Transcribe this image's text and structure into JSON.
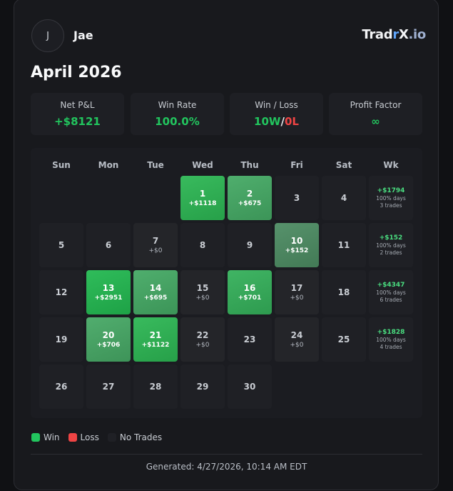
{
  "header": {
    "avatar": "J",
    "name": "Jae",
    "logo": [
      {
        "text": "Trad",
        "color": "#f3f4f6"
      },
      {
        "text": "r",
        "color": "#60a5fa"
      },
      {
        "text": "X",
        "color": "#f3f4f6"
      },
      {
        "text": ".io",
        "color": "#9fb0d0"
      }
    ]
  },
  "title": "April 2026",
  "stats": [
    {
      "label": "Net P&L",
      "value": [
        {
          "text": "+$8121",
          "color": "#22c55e"
        }
      ]
    },
    {
      "label": "Win Rate",
      "value": [
        {
          "text": "100.0%",
          "color": "#22c55e"
        }
      ]
    },
    {
      "label": "Win / Loss",
      "value": [
        {
          "text": "10W",
          "color": "#22c55e"
        },
        {
          "text": "/",
          "color": "#e5e7eb"
        },
        {
          "text": "0L",
          "color": "#ef4444"
        }
      ]
    },
    {
      "label": "Profit Factor",
      "value": [
        {
          "text": "∞",
          "color": "#22c55e"
        }
      ]
    }
  ],
  "calendar": {
    "headers": [
      "Sun",
      "Mon",
      "Tue",
      "Wed",
      "Thu",
      "Fri",
      "Sat",
      "Wk"
    ],
    "weeks": [
      {
        "days": [
          null,
          null,
          null,
          {
            "day": 1,
            "pnl": "+$1118",
            "color": "#2cb653"
          },
          {
            "day": 2,
            "pnl": "+$675",
            "color": "#44a964"
          },
          {
            "day": 3
          },
          {
            "day": 4
          }
        ],
        "summary": {
          "pnl": "+$1794",
          "days": "100% days",
          "trades": "3 trades"
        }
      },
      {
        "days": [
          {
            "day": 5
          },
          {
            "day": 6
          },
          {
            "day": 7,
            "pnl": "+$0"
          },
          {
            "day": 8
          },
          {
            "day": 9
          },
          {
            "day": 10,
            "pnl": "+$152",
            "color": "#4c8b62"
          },
          {
            "day": 11
          }
        ],
        "summary": {
          "pnl": "+$152",
          "days": "100% days",
          "trades": "2 trades"
        }
      },
      {
        "days": [
          {
            "day": 12
          },
          {
            "day": 13,
            "pnl": "+$2951",
            "color": "#22b850"
          },
          {
            "day": 14,
            "pnl": "+$695",
            "color": "#44a964"
          },
          {
            "day": 15,
            "pnl": "+$0"
          },
          {
            "day": 16,
            "pnl": "+$701",
            "color": "#34b05a"
          },
          {
            "day": 17,
            "pnl": "+$0"
          },
          {
            "day": 18
          }
        ],
        "summary": {
          "pnl": "+$4347",
          "days": "100% days",
          "trades": "6 trades"
        }
      },
      {
        "days": [
          {
            "day": 19
          },
          {
            "day": 20,
            "pnl": "+$706",
            "color": "#46a865"
          },
          {
            "day": 21,
            "pnl": "+$1122",
            "color": "#2cb653"
          },
          {
            "day": 22,
            "pnl": "+$0"
          },
          {
            "day": 23
          },
          {
            "day": 24,
            "pnl": "+$0"
          },
          {
            "day": 25
          }
        ],
        "summary": {
          "pnl": "+$1828",
          "days": "100% days",
          "trades": "4 trades"
        }
      },
      {
        "days": [
          {
            "day": 26
          },
          {
            "day": 27
          },
          {
            "day": 28
          },
          {
            "day": 29
          },
          {
            "day": 30
          },
          null,
          null
        ],
        "summary": null
      }
    ]
  },
  "legend": [
    {
      "label": "Win",
      "color": "#22c55e"
    },
    {
      "label": "Loss",
      "color": "#ef4444"
    },
    {
      "label": "No Trades",
      "color": "#1f2025"
    }
  ],
  "footer": "Generated: 4/27/2026, 10:14 AM EDT"
}
